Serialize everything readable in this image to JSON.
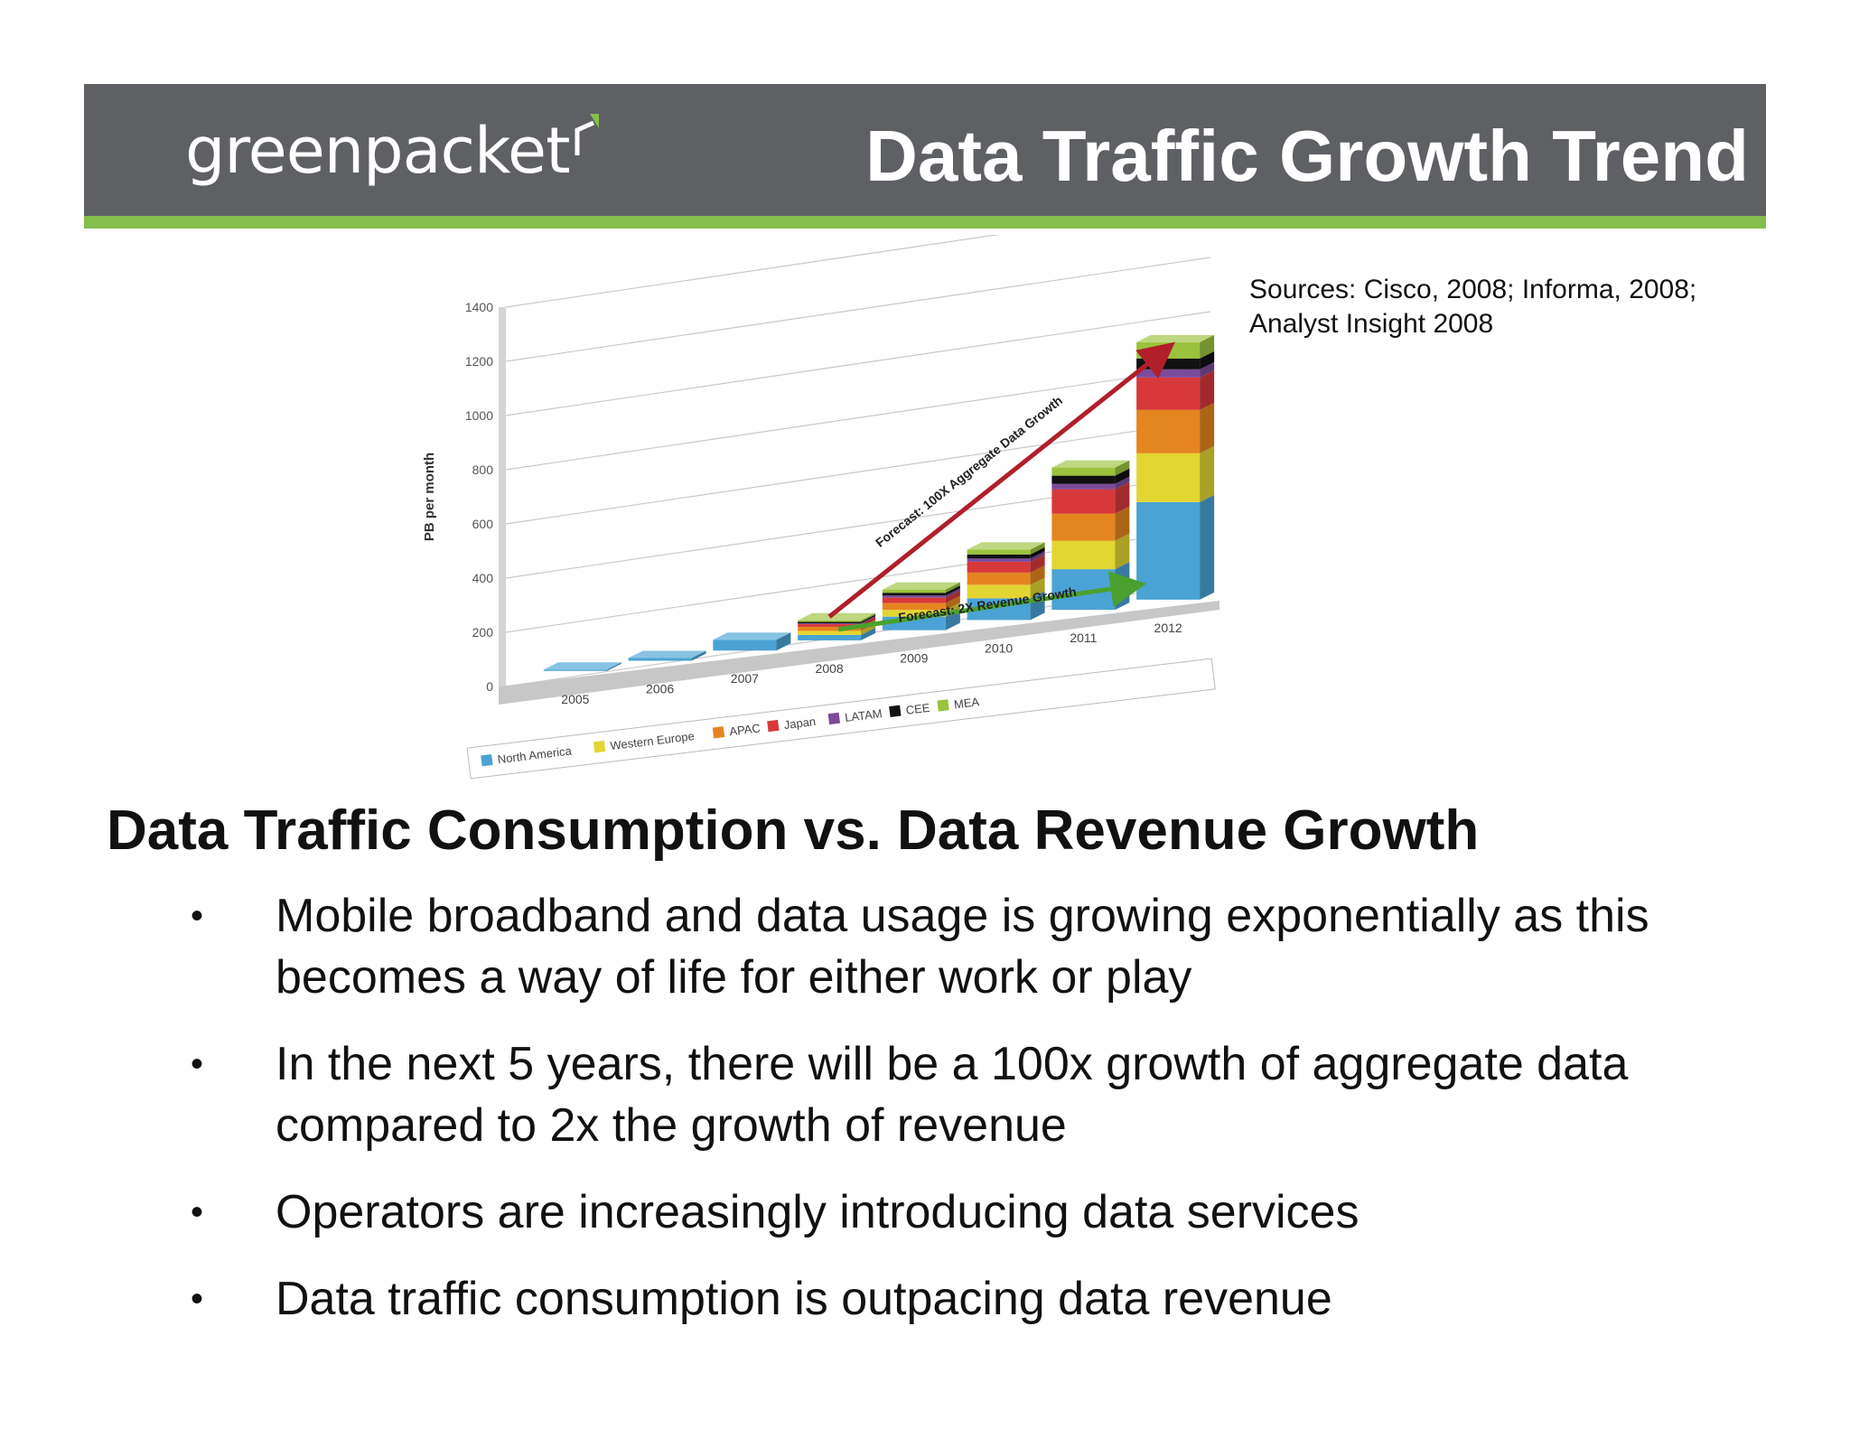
{
  "header": {
    "logo_text": "greenpacket",
    "title": "Data Traffic Growth Trend",
    "colors": {
      "banner": "#5e6064",
      "stripe": "#84bd4c",
      "text": "#ffffff"
    }
  },
  "sources": "Sources: Cisco, 2008; Informa, 2008; Analyst Insight 2008",
  "subtitle": "Data Traffic Consumption vs. Data Revenue Growth",
  "bullets": [
    {
      "text": "Mobile broadband and data usage is growing exponentially as this becomes a way of life for either work or play"
    },
    {
      "text": "In the next 5 years, there will be a 100x growth of aggregate data compared to 2x the growth of revenue"
    },
    {
      "text": "Operators are increasingly introducing data services"
    },
    {
      "text": "Data traffic consumption is outpacing data revenue"
    }
  ],
  "chart_data": {
    "type": "bar",
    "stacked": true,
    "ylabel": "PB per month",
    "ylim": [
      0,
      1400
    ],
    "yticks": [
      0,
      200,
      400,
      600,
      800,
      1000,
      1200,
      1400
    ],
    "categories": [
      "2005",
      "2006",
      "2007",
      "2008",
      "2009",
      "2010",
      "2011",
      "2012"
    ],
    "series": [
      {
        "name": "North America",
        "color": "#4aa3d4",
        "values": [
          5,
          10,
          40,
          20,
          50,
          80,
          150,
          360
        ]
      },
      {
        "name": "Western Europe",
        "color": "#e3d531",
        "values": [
          0,
          0,
          0,
          15,
          25,
          50,
          105,
          180
        ]
      },
      {
        "name": "APAC",
        "color": "#e5851f",
        "values": [
          0,
          0,
          0,
          15,
          25,
          45,
          100,
          160
        ]
      },
      {
        "name": "Japan",
        "color": "#d7393a",
        "values": [
          0,
          0,
          0,
          10,
          20,
          40,
          90,
          120
        ]
      },
      {
        "name": "LATAM",
        "color": "#7b4b9c",
        "values": [
          0,
          0,
          0,
          3,
          8,
          12,
          20,
          30
        ]
      },
      {
        "name": "CEE",
        "color": "#111111",
        "values": [
          0,
          0,
          0,
          5,
          10,
          15,
          30,
          40
        ]
      },
      {
        "name": "MEA",
        "color": "#9bc23c",
        "values": [
          0,
          0,
          0,
          6,
          12,
          18,
          30,
          60
        ]
      }
    ],
    "annotations": [
      {
        "text": "Forecast: 100X Aggregate Data Growth",
        "color": "#b01f2a"
      },
      {
        "text": "Forecast: 2X Revenue Growth",
        "color": "#4aa12e"
      }
    ],
    "legend_position": "bottom",
    "grid": true
  }
}
